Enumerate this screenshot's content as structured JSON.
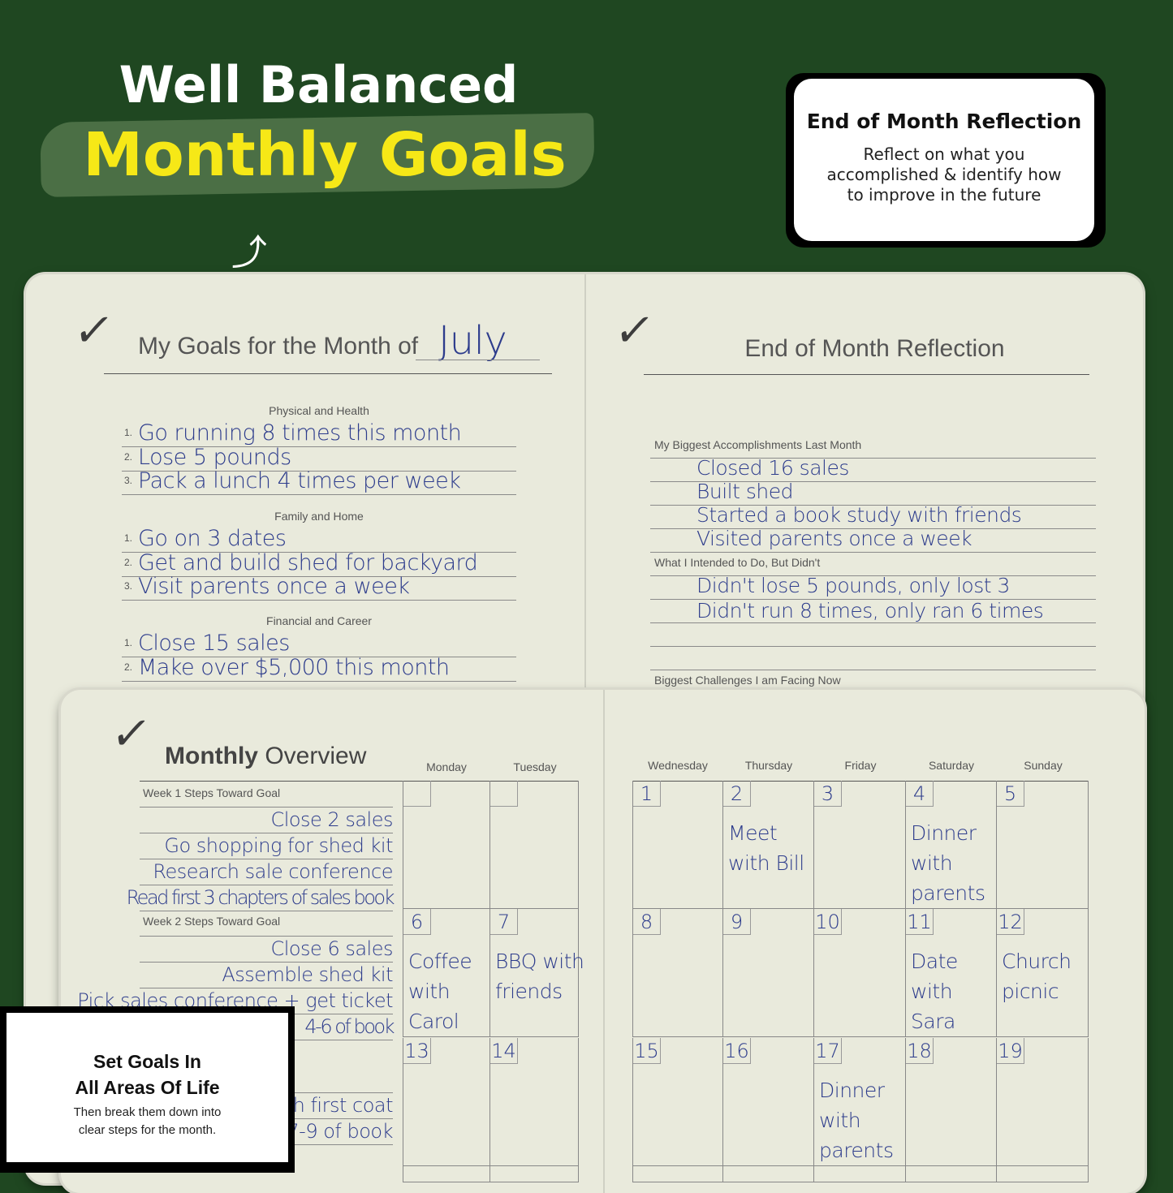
{
  "headline": {
    "line1": "Well Balanced",
    "line2": "Monthly Goals",
    "arrow_icon": "curly-arrow-up"
  },
  "callout_reflection": {
    "title": "End of Month Reflection",
    "body": "Reflect on what you accomplished & identify how to improve in the future"
  },
  "callout_goals": {
    "title_line1": "Set Goals In",
    "title_line2": "All Areas Of Life",
    "body_line1": "Then break them down into",
    "body_line2": "clear steps for the month."
  },
  "goals_page": {
    "heading": "My Goals for the Month of",
    "month": "July",
    "sections": [
      {
        "label": "Physical and Health",
        "items": [
          "Go running 8 times this month",
          "Lose 5 pounds",
          "Pack a lunch 4 times per week"
        ]
      },
      {
        "label": "Family and Home",
        "items": [
          "Go on 3 dates",
          "Get and build shed for backyard",
          "Visit parents once a week"
        ]
      },
      {
        "label": "Financial and Career",
        "items": [
          "Close 15 sales",
          "Make over $5,000 this month"
        ]
      }
    ]
  },
  "reflection_page": {
    "heading": "End of Month Reflection",
    "accomplishments_label": "My Biggest Accomplishments Last Month",
    "accomplishments": [
      "Closed 16 sales",
      "Built shed",
      "Started a book study with friends",
      "Visited parents once a week"
    ],
    "intended_label": "What I Intended to Do, But Didn't",
    "intended": [
      "Didn't lose 5 pounds, only lost 3",
      "Didn't run 8 times, only ran 6 times"
    ],
    "challenges_label": "Biggest Challenges I am Facing Now"
  },
  "overview": {
    "title_bold": "Monthly",
    "title_light": "Overview",
    "days": [
      "Monday",
      "Tuesday",
      "Wednesday",
      "Thursday",
      "Friday",
      "Saturday",
      "Sunday"
    ],
    "week1_label": "Week 1 Steps Toward Goal",
    "week1": [
      "Close 2 sales",
      "Go shopping for shed kit",
      "Research sale conference",
      "Read first 3 chapters of sales book"
    ],
    "week2_label": "Week 2 Steps Toward Goal",
    "week2": [
      "Close 6 sales",
      "Assemble shed kit",
      "Pick sales conference + get ticket",
      "4-6 of book"
    ],
    "week3": [
      "h first coat",
      "7-9 of book"
    ],
    "calendar": [
      [
        null,
        null,
        {
          "d": "1"
        },
        {
          "d": "2",
          "ev": "Meet with Bill"
        },
        {
          "d": "3"
        },
        {
          "d": "4",
          "ev": "Dinner with parents"
        },
        {
          "d": "5"
        }
      ],
      [
        {
          "d": "6",
          "ev": "Coffee with Carol"
        },
        {
          "d": "7",
          "ev": "BBQ with friends"
        },
        {
          "d": "8"
        },
        {
          "d": "9"
        },
        {
          "d": "10"
        },
        {
          "d": "11",
          "ev": "Date with Sara"
        },
        {
          "d": "12",
          "ev": "Church picnic"
        }
      ],
      [
        {
          "d": "13"
        },
        {
          "d": "14"
        },
        {
          "d": "15"
        },
        {
          "d": "16"
        },
        {
          "d": "17",
          "ev": "Dinner with parents"
        },
        {
          "d": "18"
        },
        {
          "d": "19"
        }
      ]
    ]
  },
  "colors": {
    "background": "#1f4721",
    "headline_accent": "#f6e817",
    "ink": "#2d3c8c",
    "paper": "#e9eadc"
  }
}
